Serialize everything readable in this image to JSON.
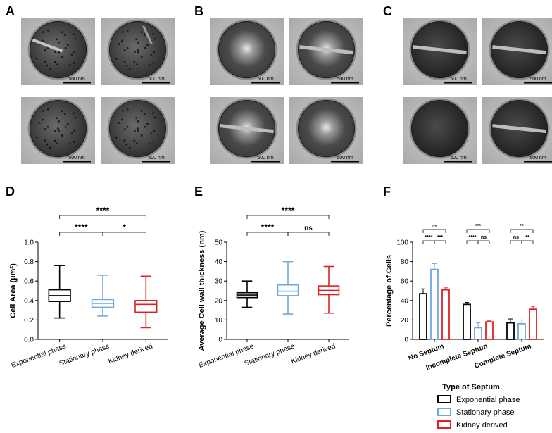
{
  "figure": {
    "panel_labels": [
      "A",
      "B",
      "C",
      "D",
      "E",
      "F"
    ],
    "micrographs": {
      "scale_bar_label": "500 nm",
      "panels": [
        {
          "label": "A",
          "style": "granular",
          "tiles": [
            {
              "septum": "partial"
            },
            {
              "septum": "faint"
            },
            {
              "septum": "none"
            },
            {
              "septum": "none"
            }
          ]
        },
        {
          "label": "B",
          "style": "halo",
          "tiles": [
            {
              "septum": "none"
            },
            {
              "septum": "complete"
            },
            {
              "septum": "complete"
            },
            {
              "septum": "none"
            }
          ]
        },
        {
          "label": "C",
          "style": "dark",
          "tiles": [
            {
              "septum": "complete"
            },
            {
              "septum": "complete"
            },
            {
              "septum": "none"
            },
            {
              "septum": "complete"
            }
          ]
        }
      ]
    },
    "colors": {
      "exponential": "#000000",
      "stationary": "#6fa8dc",
      "kidney": "#e02020"
    }
  },
  "chart_data": [
    {
      "panel": "D",
      "type": "box",
      "categories": [
        "Exponential phase",
        "Stationary phase",
        "Kidney derived"
      ],
      "ylabel": "Cell Area (µm²)",
      "ylim": [
        0,
        1.0
      ],
      "yticks": [
        "0.0",
        "0.2",
        "0.4",
        "0.6",
        "0.8",
        "1.0"
      ],
      "boxes": [
        {
          "min": 0.22,
          "q1": 0.39,
          "median": 0.45,
          "q3": 0.51,
          "max": 0.76
        },
        {
          "min": 0.24,
          "q1": 0.33,
          "median": 0.37,
          "q3": 0.41,
          "max": 0.66
        },
        {
          "min": 0.12,
          "q1": 0.28,
          "median": 0.36,
          "q3": 0.4,
          "max": 0.65
        }
      ],
      "significance": [
        {
          "from": 0,
          "to": 2,
          "label": "****",
          "level": 2
        },
        {
          "from": 0,
          "to": 1,
          "label": "****",
          "level": 1
        },
        {
          "from": 1,
          "to": 2,
          "label": "*",
          "level": 1
        }
      ]
    },
    {
      "panel": "E",
      "type": "box",
      "categories": [
        "Exponential phase",
        "Stationary phase",
        "Kidney derived"
      ],
      "ylabel": "Average Cell wall thickness (nm)",
      "ylim": [
        0,
        50
      ],
      "yticks": [
        "0",
        "10",
        "20",
        "30",
        "40",
        "50"
      ],
      "boxes": [
        {
          "min": 16.5,
          "q1": 21.5,
          "median": 22.8,
          "q3": 24.0,
          "max": 30.0
        },
        {
          "min": 13.0,
          "q1": 22.5,
          "median": 24.8,
          "q3": 28.0,
          "max": 40.0
        },
        {
          "min": 13.5,
          "q1": 23.0,
          "median": 25.2,
          "q3": 27.5,
          "max": 37.5
        }
      ],
      "significance": [
        {
          "from": 0,
          "to": 2,
          "label": "****",
          "level": 2
        },
        {
          "from": 0,
          "to": 1,
          "label": "****",
          "level": 1
        },
        {
          "from": 1,
          "to": 2,
          "label": "ns",
          "level": 1
        }
      ]
    },
    {
      "panel": "F",
      "type": "bar",
      "categories": [
        "No Septum",
        "Incomplete Septum",
        "Complete Septum"
      ],
      "xlabel": "Type of Septum",
      "ylabel": "Percentage of Cells",
      "ylim": [
        0,
        100
      ],
      "yticks": [
        "0",
        "20",
        "40",
        "60",
        "80",
        "100"
      ],
      "series": [
        {
          "name": "Exponential phase",
          "values": [
            47,
            36,
            17
          ],
          "errors": [
            5,
            2,
            4
          ]
        },
        {
          "name": "Stationary phase",
          "values": [
            72,
            12,
            16
          ],
          "errors": [
            6,
            5,
            4
          ]
        },
        {
          "name": "Kidney derived",
          "values": [
            51,
            18,
            31
          ],
          "errors": [
            2,
            1,
            3
          ]
        }
      ],
      "significance": [
        [
          {
            "from": 0,
            "to": 2,
            "label": "ns",
            "level": 2
          },
          {
            "from": 0,
            "to": 1,
            "label": "****",
            "level": 1
          },
          {
            "from": 1,
            "to": 2,
            "label": "***",
            "level": 1
          }
        ],
        [
          {
            "from": 0,
            "to": 2,
            "label": "***",
            "level": 2
          },
          {
            "from": 0,
            "to": 1,
            "label": "****",
            "level": 1
          },
          {
            "from": 1,
            "to": 2,
            "label": "ns",
            "level": 1
          }
        ],
        [
          {
            "from": 0,
            "to": 2,
            "label": "**",
            "level": 2
          },
          {
            "from": 0,
            "to": 1,
            "label": "ns",
            "level": 1
          },
          {
            "from": 1,
            "to": 2,
            "label": "**",
            "level": 1
          }
        ]
      ],
      "legend_title": "Type of Septum",
      "legend_position": "bottom"
    }
  ]
}
